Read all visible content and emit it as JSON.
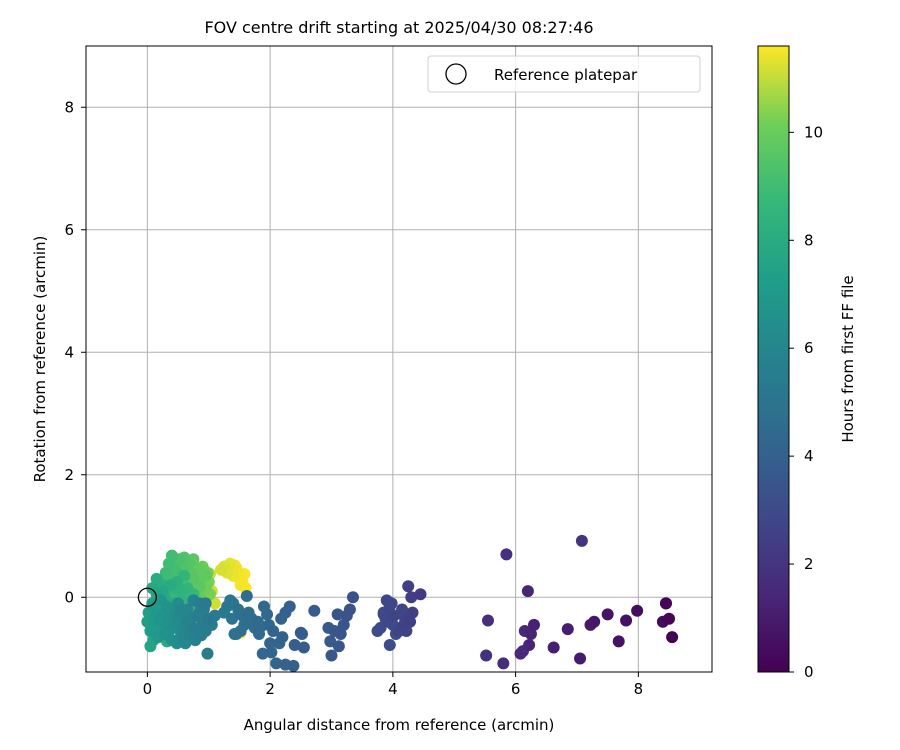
{
  "chart_data": {
    "type": "scatter",
    "title": "FOV centre drift starting at 2025/04/30 08:27:46",
    "xlabel": "Angular distance from reference (arcmin)",
    "ylabel": "Rotation from reference (arcmin)",
    "xlim": [
      -1.0,
      9.2
    ],
    "ylim": [
      -1.22,
      9.0
    ],
    "xticks": [
      0,
      2,
      4,
      6,
      8
    ],
    "yticks": [
      0,
      2,
      4,
      6,
      8
    ],
    "grid": true,
    "legend": {
      "position": "top-right",
      "entries": [
        "Reference platepar"
      ]
    },
    "reference_point": {
      "label": "Reference platepar",
      "x": 0,
      "y": 0
    },
    "colorbar": {
      "label": "Hours from first FF file",
      "colormap": "viridis",
      "min": 0,
      "max": 11.6,
      "ticks": [
        0,
        2,
        4,
        6,
        8,
        10
      ]
    },
    "series": [
      {
        "x": [
          8.55,
          8.45,
          8.5,
          8.4,
          8.45,
          7.98,
          7.8,
          7.68,
          7.5,
          7.28,
          7.22,
          7.05,
          6.85,
          6.62,
          6.3,
          6.25,
          6.22,
          6.2,
          6.15,
          6.12,
          6.08,
          5.8,
          5.85,
          5.55,
          5.52,
          7.08
        ],
        "y": [
          -0.65,
          -0.1,
          -0.35,
          -0.4,
          -0.1,
          -0.22,
          -0.38,
          -0.72,
          -0.28,
          -0.4,
          -0.45,
          -1.0,
          -0.52,
          -0.82,
          -0.45,
          -0.6,
          -0.78,
          0.1,
          -0.55,
          -0.88,
          -0.92,
          -1.08,
          0.7,
          -0.38,
          -0.95,
          0.92
        ],
        "h": [
          0.05,
          0.12,
          0.2,
          0.28,
          0.35,
          0.45,
          0.55,
          0.62,
          0.7,
          0.8,
          0.9,
          0.98,
          1.05,
          1.1,
          1.2,
          1.3,
          1.35,
          1.4,
          1.5,
          1.55,
          1.6,
          1.7,
          1.75,
          1.8,
          1.85,
          2.0
        ]
      },
      {
        "x": [
          4.45,
          4.3,
          4.25,
          4.32,
          4.18,
          4.2,
          4.1,
          4.02,
          3.95,
          3.9,
          3.92,
          3.85,
          3.8,
          4.05,
          3.95,
          3.88,
          4.15,
          3.98,
          4.22,
          4.0,
          3.75,
          4.28,
          3.85
        ],
        "y": [
          0.05,
          0.0,
          0.18,
          -0.25,
          -0.45,
          -0.35,
          -0.55,
          -0.3,
          -0.15,
          -0.05,
          -0.4,
          -0.25,
          -0.5,
          -0.6,
          -0.78,
          -0.35,
          -0.2,
          -0.1,
          -0.55,
          -0.45,
          -0.55,
          -0.4,
          -0.28
        ],
        "h": [
          2.3,
          2.4,
          2.5,
          2.5,
          2.6,
          2.6,
          2.7,
          2.7,
          2.8,
          2.8,
          2.9,
          2.9,
          3.0,
          3.0,
          3.05,
          3.1,
          2.75,
          2.85,
          2.65,
          2.95,
          3.1,
          2.55,
          3.0
        ]
      },
      {
        "x": [
          3.35,
          3.3,
          3.25,
          3.2,
          3.15,
          3.12,
          3.05,
          3.0,
          2.98,
          2.95,
          2.72,
          2.55,
          2.5,
          2.52,
          2.38,
          2.32,
          2.25,
          2.2,
          2.18,
          2.15,
          2.1,
          2.05,
          2.02,
          1.98,
          1.95,
          1.9,
          1.88,
          1.82,
          1.8,
          1.75,
          1.7,
          1.65,
          1.62,
          1.58,
          1.55,
          1.52,
          1.48,
          1.45,
          3.1,
          2.4,
          2.25,
          2.0,
          1.85
        ],
        "y": [
          0.0,
          -0.2,
          -0.3,
          -0.45,
          -0.6,
          -0.8,
          -0.55,
          -0.95,
          -0.72,
          -0.5,
          -0.22,
          -0.82,
          -0.58,
          -0.6,
          -1.12,
          -0.15,
          -1.1,
          -0.65,
          -0.35,
          -0.75,
          -1.08,
          -0.55,
          -0.9,
          -0.45,
          -0.28,
          -0.15,
          -0.92,
          -0.6,
          -0.4,
          -0.5,
          -0.35,
          -0.25,
          0.02,
          -0.45,
          -0.3,
          -0.55,
          -0.2,
          -0.6,
          -0.28,
          -0.78,
          -0.25,
          -0.75,
          -0.48
        ],
        "h": [
          3.3,
          3.35,
          3.4,
          3.45,
          3.5,
          3.55,
          3.55,
          3.6,
          3.65,
          3.7,
          3.75,
          3.8,
          3.85,
          3.9,
          3.95,
          4.0,
          4.05,
          4.1,
          4.1,
          4.15,
          4.2,
          4.2,
          4.25,
          4.3,
          4.35,
          4.4,
          4.4,
          4.45,
          4.5,
          4.55,
          4.6,
          4.65,
          4.6,
          4.7,
          4.75,
          4.8,
          4.85,
          4.9,
          3.5,
          3.9,
          4.0,
          4.25,
          4.45
        ]
      },
      {
        "x": [
          1.42,
          1.38,
          1.4,
          1.35,
          1.3,
          1.25,
          1.1,
          1.05,
          0.98,
          0.95,
          0.92,
          0.9,
          0.88,
          0.85,
          0.82,
          0.8,
          0.78,
          0.75,
          0.72,
          0.7,
          0.68,
          0.65,
          0.62,
          0.6,
          0.58,
          0.55,
          0.52,
          0.5,
          0.48,
          0.45,
          0.42,
          0.4,
          0.38,
          0.35,
          0.32,
          0.3,
          0.28,
          0.25,
          0.22,
          0.2,
          0.18,
          0.15,
          0.12,
          0.1,
          0.08,
          0.05,
          0.75,
          0.85,
          0.65,
          0.55,
          0.45,
          0.95,
          1.0,
          0.7,
          0.6,
          0.5,
          0.4,
          0.3
        ],
        "y": [
          -0.6,
          -0.35,
          -0.1,
          -0.05,
          -0.15,
          -0.25,
          -0.3,
          -0.45,
          -0.92,
          -0.55,
          -0.2,
          -0.4,
          -0.62,
          -0.1,
          -0.3,
          -0.55,
          -0.7,
          -0.05,
          -0.35,
          -0.65,
          -0.45,
          -0.2,
          -0.75,
          -0.55,
          -0.3,
          -0.6,
          -0.4,
          -0.1,
          -0.75,
          -0.25,
          -0.5,
          -0.7,
          -0.35,
          -0.55,
          -0.15,
          -0.45,
          -0.6,
          -0.3,
          -0.05,
          -0.4,
          -0.65,
          -0.25,
          -0.5,
          -0.35,
          -0.15,
          -0.55,
          -0.5,
          -0.25,
          -0.4,
          -0.2,
          -0.45,
          -0.1,
          -0.35,
          -0.6,
          -0.65,
          -0.3,
          -0.7,
          -0.6
        ],
        "h": [
          5.0,
          5.1,
          5.15,
          5.2,
          5.25,
          5.3,
          5.35,
          5.4,
          5.4,
          5.45,
          5.5,
          5.5,
          5.55,
          5.6,
          5.65,
          5.7,
          5.75,
          5.8,
          5.85,
          5.9,
          5.95,
          6.0,
          6.05,
          6.1,
          6.15,
          6.2,
          6.25,
          6.3,
          6.35,
          6.4,
          6.45,
          6.5,
          6.55,
          6.6,
          6.65,
          6.7,
          6.75,
          6.8,
          6.85,
          6.9,
          6.95,
          7.0,
          7.05,
          7.1,
          7.15,
          7.2,
          5.6,
          5.5,
          5.85,
          6.05,
          6.3,
          5.35,
          5.25,
          5.8,
          6.0,
          6.25,
          6.5,
          6.6
        ]
      },
      {
        "x": [
          0.0,
          0.02,
          0.05,
          0.08,
          0.1,
          0.12,
          0.15,
          0.18,
          0.2,
          0.22,
          0.25,
          0.28,
          0.3,
          0.32,
          0.35,
          0.38,
          0.4,
          0.42,
          0.45,
          0.48,
          0.5,
          0.52,
          0.55,
          0.58,
          0.6,
          0.62,
          0.65,
          0.7,
          0.75,
          0.8,
          0.15,
          0.25,
          0.35,
          0.05,
          0.1,
          0.2,
          0.3,
          0.4,
          0.45,
          0.5,
          0.08,
          0.18
        ],
        "y": [
          -0.4,
          -0.25,
          -0.55,
          -0.1,
          -0.7,
          -0.35,
          0.05,
          -0.5,
          -0.2,
          -0.62,
          0.1,
          -0.4,
          -0.05,
          -0.72,
          -0.3,
          0.2,
          -0.5,
          -0.1,
          -0.35,
          0.25,
          -0.15,
          -0.45,
          0.1,
          -0.25,
          0.35,
          -0.05,
          0.15,
          -0.2,
          0.05,
          -0.1,
          0.3,
          0.2,
          -0.15,
          -0.8,
          -0.2,
          -0.45,
          0.0,
          0.15,
          -0.25,
          0.05,
          0.15,
          -0.6
        ],
        "h": [
          7.3,
          7.35,
          7.4,
          7.45,
          7.5,
          7.55,
          7.6,
          7.65,
          7.7,
          7.75,
          7.8,
          7.85,
          7.9,
          7.95,
          8.0,
          8.05,
          8.1,
          8.15,
          8.2,
          8.25,
          8.3,
          8.35,
          8.4,
          8.45,
          8.5,
          8.55,
          8.6,
          8.65,
          8.7,
          8.75,
          8.0,
          8.2,
          8.4,
          7.6,
          7.8,
          8.1,
          8.3,
          8.5,
          8.6,
          8.7,
          7.9,
          7.7
        ]
      },
      {
        "x": [
          0.3,
          0.35,
          0.4,
          0.42,
          0.45,
          0.48,
          0.5,
          0.52,
          0.55,
          0.58,
          0.6,
          0.62,
          0.65,
          0.68,
          0.7,
          0.72,
          0.75,
          0.78,
          0.8,
          0.82,
          0.85,
          0.88,
          0.9,
          0.92,
          0.95,
          0.98,
          1.0,
          1.02,
          0.25,
          0.3,
          0.38,
          0.45,
          0.55,
          0.65,
          0.75,
          0.85,
          0.95,
          0.4,
          0.5,
          0.6,
          0.7,
          0.8,
          0.9,
          0.35
        ],
        "y": [
          0.4,
          0.55,
          0.68,
          0.2,
          0.45,
          -0.05,
          0.3,
          0.62,
          0.1,
          0.48,
          0.65,
          -0.1,
          0.25,
          0.55,
          0.05,
          0.38,
          0.62,
          -0.15,
          0.2,
          0.45,
          0.0,
          0.3,
          0.5,
          -0.2,
          0.15,
          0.4,
          0.25,
          0.05,
          0.15,
          0.3,
          0.1,
          0.55,
          0.42,
          0.08,
          0.3,
          0.18,
          0.35,
          -0.1,
          0.0,
          0.2,
          0.5,
          0.12,
          0.05,
          0.35
        ],
        "h": [
          8.9,
          8.95,
          9.0,
          9.05,
          9.1,
          9.15,
          9.2,
          9.25,
          9.3,
          9.35,
          9.4,
          9.45,
          9.5,
          9.55,
          9.6,
          9.65,
          9.7,
          9.75,
          9.8,
          9.85,
          9.9,
          9.95,
          10.0,
          10.05,
          10.1,
          10.15,
          10.2,
          10.25,
          9.0,
          9.1,
          9.2,
          9.3,
          9.4,
          9.5,
          9.6,
          9.7,
          9.8,
          9.9,
          10.0,
          10.1,
          10.2,
          10.3,
          10.4,
          9.15
        ]
      },
      {
        "x": [
          0.55,
          0.6,
          0.65,
          0.7,
          0.75,
          0.8,
          0.85,
          0.88,
          0.92,
          0.95,
          0.98,
          1.02,
          1.05,
          1.1,
          1.2,
          1.25,
          1.3,
          1.35,
          1.4,
          1.45,
          1.5,
          1.52,
          1.55,
          1.58,
          1.6,
          1.38,
          1.42,
          1.48,
          1.52
        ],
        "y": [
          0.35,
          0.1,
          0.5,
          0.25,
          0.42,
          0.05,
          0.3,
          0.15,
          0.45,
          -0.05,
          0.2,
          0.38,
          0.1,
          -0.1,
          0.45,
          0.5,
          0.4,
          0.55,
          0.35,
          0.48,
          0.3,
          0.2,
          0.25,
          0.38,
          0.15,
          0.45,
          0.52,
          0.4,
          -0.58
        ],
        "h": [
          10.5,
          10.55,
          10.6,
          10.65,
          10.7,
          10.75,
          10.8,
          10.85,
          10.9,
          10.95,
          11.0,
          11.05,
          11.1,
          11.15,
          11.2,
          11.25,
          11.3,
          11.35,
          11.4,
          11.45,
          11.5,
          11.5,
          11.55,
          11.55,
          11.6,
          11.4,
          11.45,
          11.5,
          11.6
        ]
      }
    ]
  }
}
